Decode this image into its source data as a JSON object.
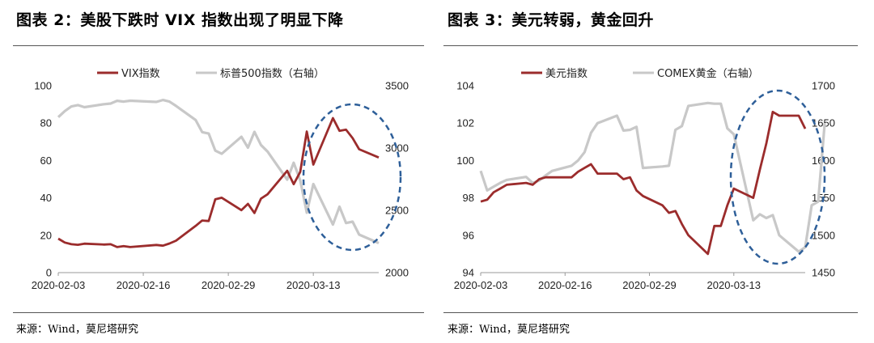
{
  "left": {
    "title": "图表 2：美股下跌时 VIX 指数出现了明显下降",
    "source": "来源：Wind，莫尼塔研究",
    "chart_data": {
      "type": "line",
      "x_ticks": [
        "2020-02-03",
        "2020-02-16",
        "2020-02-29",
        "2020-03-13"
      ],
      "x_range": [
        "2020-02-03",
        "2020-03-23"
      ],
      "left_axis": {
        "ticks": [
          "0",
          "20",
          "40",
          "60",
          "80",
          "100"
        ],
        "ylim": [
          0,
          100
        ]
      },
      "right_axis": {
        "ticks": [
          "2000",
          "2500",
          "3000",
          "3500"
        ],
        "ylim": [
          2000,
          3500
        ]
      },
      "legend_position": "top",
      "series": [
        {
          "name": "VIX指数",
          "axis": "left",
          "color": "#9b2c2c",
          "points": [
            [
              "2020-02-03",
              18.2
            ],
            [
              "2020-02-04",
              16.1
            ],
            [
              "2020-02-05",
              15.2
            ],
            [
              "2020-02-06",
              14.9
            ],
            [
              "2020-02-07",
              15.5
            ],
            [
              "2020-02-10",
              15.0
            ],
            [
              "2020-02-11",
              15.2
            ],
            [
              "2020-02-12",
              13.7
            ],
            [
              "2020-02-13",
              14.2
            ],
            [
              "2020-02-14",
              13.7
            ],
            [
              "2020-02-18",
              14.8
            ],
            [
              "2020-02-19",
              14.4
            ],
            [
              "2020-02-20",
              15.6
            ],
            [
              "2020-02-21",
              17.1
            ],
            [
              "2020-02-24",
              25.0
            ],
            [
              "2020-02-25",
              27.9
            ],
            [
              "2020-02-26",
              27.6
            ],
            [
              "2020-02-27",
              39.2
            ],
            [
              "2020-02-28",
              40.1
            ],
            [
              "2020-03-02",
              33.4
            ],
            [
              "2020-03-03",
              36.8
            ],
            [
              "2020-03-04",
              31.9
            ],
            [
              "2020-03-05",
              39.6
            ],
            [
              "2020-03-06",
              41.9
            ],
            [
              "2020-03-09",
              54.5
            ],
            [
              "2020-03-10",
              47.3
            ],
            [
              "2020-03-11",
              53.9
            ],
            [
              "2020-03-12",
              75.5
            ],
            [
              "2020-03-13",
              57.8
            ],
            [
              "2020-03-16",
              82.7
            ],
            [
              "2020-03-17",
              75.9
            ],
            [
              "2020-03-18",
              76.5
            ],
            [
              "2020-03-19",
              72.0
            ],
            [
              "2020-03-20",
              66.0
            ],
            [
              "2020-03-23",
              61.6
            ]
          ]
        },
        {
          "name": "标普500指数（右轴）",
          "axis": "right",
          "color": "#c8c8c8",
          "points": [
            [
              "2020-02-03",
              3248
            ],
            [
              "2020-02-04",
              3297
            ],
            [
              "2020-02-05",
              3334
            ],
            [
              "2020-02-06",
              3345
            ],
            [
              "2020-02-07",
              3328
            ],
            [
              "2020-02-10",
              3352
            ],
            [
              "2020-02-11",
              3357
            ],
            [
              "2020-02-12",
              3379
            ],
            [
              "2020-02-13",
              3373
            ],
            [
              "2020-02-14",
              3380
            ],
            [
              "2020-02-18",
              3370
            ],
            [
              "2020-02-19",
              3386
            ],
            [
              "2020-02-20",
              3373
            ],
            [
              "2020-02-21",
              3338
            ],
            [
              "2020-02-24",
              3225
            ],
            [
              "2020-02-25",
              3128
            ],
            [
              "2020-02-26",
              3116
            ],
            [
              "2020-02-27",
              2979
            ],
            [
              "2020-02-28",
              2954
            ],
            [
              "2020-03-02",
              3090
            ],
            [
              "2020-03-03",
              3003
            ],
            [
              "2020-03-04",
              3130
            ],
            [
              "2020-03-05",
              3024
            ],
            [
              "2020-03-06",
              2972
            ],
            [
              "2020-03-09",
              2746
            ],
            [
              "2020-03-10",
              2882
            ],
            [
              "2020-03-11",
              2741
            ],
            [
              "2020-03-12",
              2481
            ],
            [
              "2020-03-13",
              2711
            ],
            [
              "2020-03-16",
              2386
            ],
            [
              "2020-03-17",
              2529
            ],
            [
              "2020-03-18",
              2398
            ],
            [
              "2020-03-19",
              2409
            ],
            [
              "2020-03-20",
              2305
            ],
            [
              "2020-03-23",
              2237
            ]
          ]
        }
      ]
    }
  },
  "right": {
    "title": "图表 3：美元转弱，黄金回升",
    "source": "来源：Wind，莫尼塔研究",
    "chart_data": {
      "type": "line",
      "x_ticks": [
        "2020-02-03",
        "2020-02-16",
        "2020-02-29",
        "2020-03-13"
      ],
      "x_range": [
        "2020-02-03",
        "2020-03-24"
      ],
      "left_axis": {
        "ticks": [
          "94",
          "96",
          "98",
          "100",
          "102",
          "104"
        ],
        "ylim": [
          94,
          104
        ]
      },
      "right_axis": {
        "ticks": [
          "1450",
          "1500",
          "1550",
          "1600",
          "1650",
          "1700"
        ],
        "ylim": [
          1450,
          1700
        ]
      },
      "legend_position": "top",
      "series": [
        {
          "name": "美元指数",
          "axis": "left",
          "color": "#9b2c2c",
          "points": [
            [
              "2020-02-03",
              97.8
            ],
            [
              "2020-02-04",
              97.9
            ],
            [
              "2020-02-05",
              98.3
            ],
            [
              "2020-02-06",
              98.5
            ],
            [
              "2020-02-07",
              98.7
            ],
            [
              "2020-02-10",
              98.8
            ],
            [
              "2020-02-11",
              98.7
            ],
            [
              "2020-02-12",
              99.0
            ],
            [
              "2020-02-13",
              99.1
            ],
            [
              "2020-02-14",
              99.1
            ],
            [
              "2020-02-17",
              99.1
            ],
            [
              "2020-02-18",
              99.4
            ],
            [
              "2020-02-19",
              99.6
            ],
            [
              "2020-02-20",
              99.8
            ],
            [
              "2020-02-21",
              99.3
            ],
            [
              "2020-02-24",
              99.3
            ],
            [
              "2020-02-25",
              99.0
            ],
            [
              "2020-02-26",
              99.1
            ],
            [
              "2020-02-27",
              98.4
            ],
            [
              "2020-02-28",
              98.1
            ],
            [
              "2020-03-02",
              97.6
            ],
            [
              "2020-03-03",
              97.2
            ],
            [
              "2020-03-04",
              97.3
            ],
            [
              "2020-03-05",
              96.6
            ],
            [
              "2020-03-06",
              96.0
            ],
            [
              "2020-03-09",
              95.0
            ],
            [
              "2020-03-10",
              96.5
            ],
            [
              "2020-03-11",
              96.5
            ],
            [
              "2020-03-12",
              97.6
            ],
            [
              "2020-03-13",
              98.5
            ],
            [
              "2020-03-16",
              98.0
            ],
            [
              "2020-03-17",
              99.5
            ],
            [
              "2020-03-18",
              100.9
            ],
            [
              "2020-03-19",
              102.6
            ],
            [
              "2020-03-20",
              102.4
            ],
            [
              "2020-03-23",
              102.4
            ],
            [
              "2020-03-24",
              101.7
            ]
          ]
        },
        {
          "name": "COMEX黄金（右轴）",
          "axis": "right",
          "color": "#c8c8c8",
          "points": [
            [
              "2020-02-03",
              1586
            ],
            [
              "2020-02-04",
              1560
            ],
            [
              "2020-02-05",
              1565
            ],
            [
              "2020-02-06",
              1570
            ],
            [
              "2020-02-07",
              1574
            ],
            [
              "2020-02-10",
              1578
            ],
            [
              "2020-02-11",
              1570
            ],
            [
              "2020-02-12",
              1573
            ],
            [
              "2020-02-13",
              1580
            ],
            [
              "2020-02-14",
              1586
            ],
            [
              "2020-02-17",
              1593
            ],
            [
              "2020-02-18",
              1600
            ],
            [
              "2020-02-19",
              1611
            ],
            [
              "2020-02-20",
              1637
            ],
            [
              "2020-02-21",
              1650
            ],
            [
              "2020-02-24",
              1660
            ],
            [
              "2020-02-25",
              1640
            ],
            [
              "2020-02-26",
              1641
            ],
            [
              "2020-02-27",
              1645
            ],
            [
              "2020-02-28",
              1590
            ],
            [
              "2020-03-02",
              1592
            ],
            [
              "2020-03-03",
              1593
            ],
            [
              "2020-03-04",
              1641
            ],
            [
              "2020-03-05",
              1646
            ],
            [
              "2020-03-06",
              1673
            ],
            [
              "2020-03-09",
              1677
            ],
            [
              "2020-03-10",
              1676
            ],
            [
              "2020-03-11",
              1676
            ],
            [
              "2020-03-12",
              1643
            ],
            [
              "2020-03-13",
              1635
            ],
            [
              "2020-03-16",
              1520
            ],
            [
              "2020-03-17",
              1528
            ],
            [
              "2020-03-18",
              1523
            ],
            [
              "2020-03-19",
              1527
            ],
            [
              "2020-03-20",
              1500
            ],
            [
              "2020-03-23",
              1478
            ],
            [
              "2020-03-24",
              1484
            ],
            [
              "2020-03-25",
              1540
            ],
            [
              "2020-03-26",
              1545
            ],
            [
              "2020-03-27",
              1650
            ]
          ]
        }
      ]
    }
  },
  "highlight": {
    "color": "#2e5f99"
  }
}
